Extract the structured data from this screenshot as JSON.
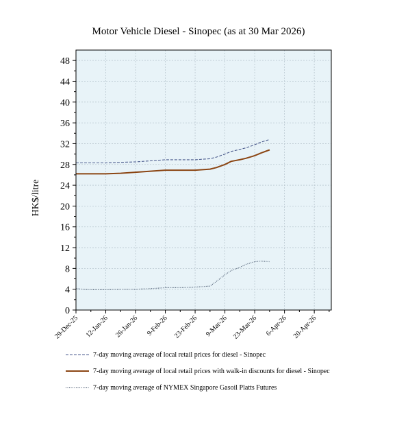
{
  "chart_data": {
    "type": "line",
    "title": "Motor Vehicle Diesel - Sinopec (as at 30 Mar 2026)",
    "xlabel": "",
    "ylabel": "HK$/litre",
    "ylim": [
      0,
      50
    ],
    "yticks": [
      0,
      4,
      8,
      12,
      16,
      20,
      24,
      28,
      32,
      36,
      40,
      44,
      48
    ],
    "xlim": [
      "2025-12-29",
      "2026-04-28"
    ],
    "xticks": [
      "2025-12-29",
      "2026-01-12",
      "2026-01-26",
      "2026-02-09",
      "2026-02-23",
      "2026-03-09",
      "2026-03-23",
      "2026-04-06",
      "2026-04-20"
    ],
    "xtick_labels": [
      "29-Dec-25",
      "12-Jan-26",
      "26-Jan-26",
      "9-Feb-26",
      "23-Feb-26",
      "9-Mar-26",
      "23-Mar-26",
      "6-Apr-26",
      "20-Apr-26"
    ],
    "plot_background": "#e8f3f8",
    "grid": true,
    "legend_position": "bottom",
    "series": [
      {
        "name": "7-day moving average of local retail prices for diesel - Sinopec",
        "color": "#4a5a8c",
        "style": "dashed",
        "x": [
          "2025-12-29",
          "2026-01-05",
          "2026-01-12",
          "2026-01-19",
          "2026-01-26",
          "2026-02-02",
          "2026-02-09",
          "2026-02-16",
          "2026-02-23",
          "2026-03-02",
          "2026-03-05",
          "2026-03-09",
          "2026-03-12",
          "2026-03-16",
          "2026-03-19",
          "2026-03-23",
          "2026-03-26",
          "2026-03-30"
        ],
        "values": [
          28.3,
          28.3,
          28.3,
          28.4,
          28.5,
          28.7,
          28.9,
          28.9,
          28.9,
          29.1,
          29.4,
          30.0,
          30.5,
          30.9,
          31.2,
          31.8,
          32.3,
          32.8
        ]
      },
      {
        "name": "7-day moving average of local retail prices with walk-in discounts for diesel  - Sinopec",
        "color": "#8b4513",
        "style": "solid",
        "x": [
          "2025-12-29",
          "2026-01-05",
          "2026-01-12",
          "2026-01-19",
          "2026-01-26",
          "2026-02-02",
          "2026-02-09",
          "2026-02-16",
          "2026-02-23",
          "2026-03-02",
          "2026-03-05",
          "2026-03-09",
          "2026-03-12",
          "2026-03-16",
          "2026-03-19",
          "2026-03-23",
          "2026-03-26",
          "2026-03-30"
        ],
        "values": [
          26.2,
          26.2,
          26.2,
          26.3,
          26.5,
          26.7,
          26.9,
          26.9,
          26.9,
          27.1,
          27.4,
          28.0,
          28.6,
          28.9,
          29.2,
          29.7,
          30.2,
          30.8
        ]
      },
      {
        "name": "7-day moving average of NYMEX Singapore Gasoil Platts Futures",
        "color": "#4a5a70",
        "style": "dotted",
        "x": [
          "2025-12-29",
          "2026-01-05",
          "2026-01-12",
          "2026-01-19",
          "2026-01-26",
          "2026-02-02",
          "2026-02-09",
          "2026-02-16",
          "2026-02-23",
          "2026-03-02",
          "2026-03-05",
          "2026-03-09",
          "2026-03-12",
          "2026-03-16",
          "2026-03-19",
          "2026-03-23",
          "2026-03-26",
          "2026-03-30"
        ],
        "values": [
          4.1,
          3.9,
          3.9,
          4.0,
          4.0,
          4.1,
          4.3,
          4.3,
          4.4,
          4.6,
          5.5,
          6.8,
          7.6,
          8.2,
          8.8,
          9.3,
          9.4,
          9.3
        ]
      }
    ]
  }
}
